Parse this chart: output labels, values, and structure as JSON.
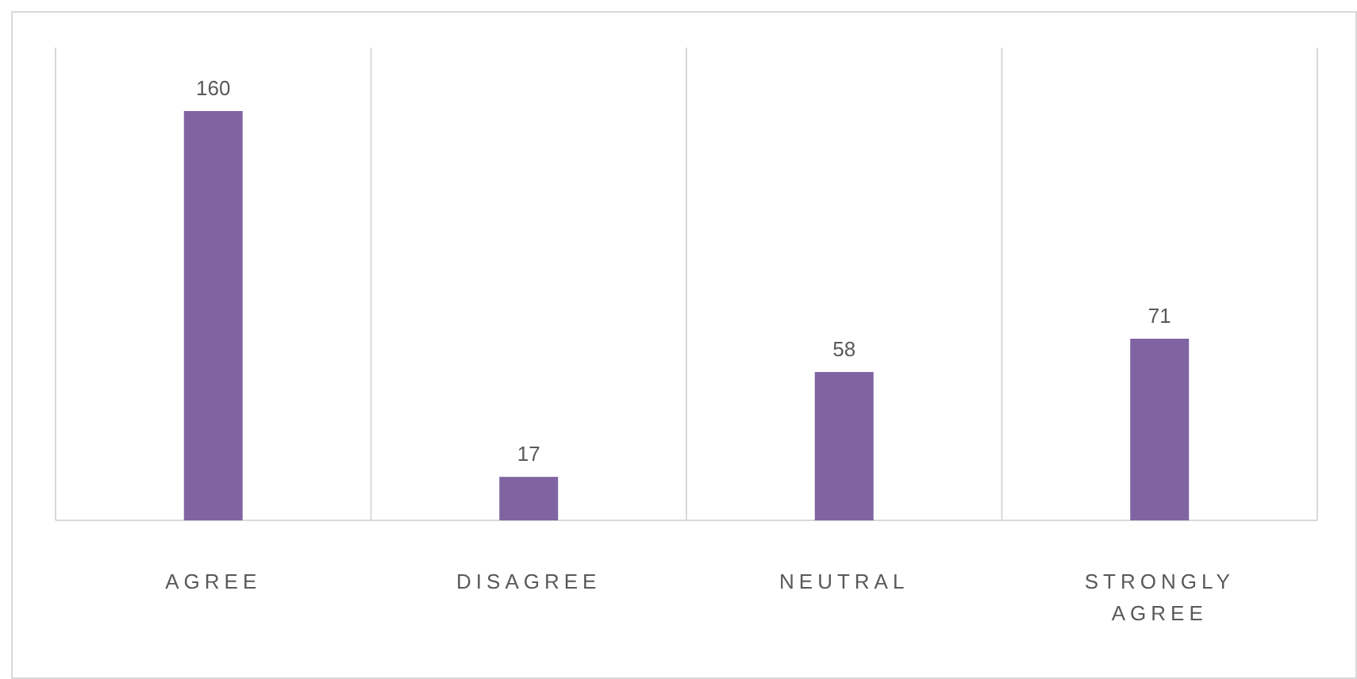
{
  "chart_data": {
    "type": "bar",
    "categories": [
      "AGREE",
      "DISAGREE",
      "NEUTRAL",
      "STRONGLY AGREE"
    ],
    "values": [
      160,
      17,
      58,
      71
    ],
    "color": "#8064a2",
    "data_labels": true,
    "grid": "x"
  }
}
